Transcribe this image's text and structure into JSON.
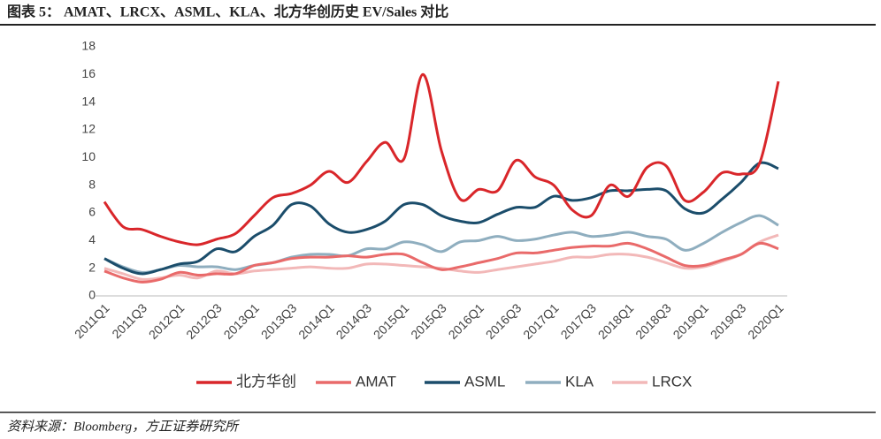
{
  "chart_data": {
    "type": "line",
    "title": "图表 5： AMAT、LRCX、ASML、KLA、北方华创历史 EV/Sales 对比",
    "source": "资料来源：Bloomberg，方正证券研究所",
    "categories": [
      "2011Q1",
      null,
      "2011Q3",
      null,
      "2012Q1",
      null,
      "2012Q3",
      null,
      "2013Q1",
      null,
      "2013Q3",
      null,
      "2014Q1",
      null,
      "2014Q3",
      null,
      "2015Q1",
      null,
      "2015Q3",
      null,
      "2016Q1",
      null,
      "2016Q3",
      null,
      "2017Q1",
      null,
      "2017Q3",
      null,
      "2018Q1",
      null,
      "2018Q3",
      null,
      "2019Q1",
      null,
      "2019Q3",
      null,
      "2020Q1"
    ],
    "series": [
      {
        "name": "北方华创",
        "color": "#d9262a",
        "values": [
          6.8,
          5.0,
          4.8,
          4.3,
          3.9,
          3.7,
          4.1,
          4.5,
          5.8,
          7.1,
          7.4,
          8.0,
          9.0,
          8.2,
          9.7,
          11.1,
          9.9,
          16.0,
          10.5,
          7.0,
          7.7,
          7.6,
          9.8,
          8.6,
          8.0,
          6.2,
          5.8,
          8.0,
          7.2,
          9.3,
          9.4,
          6.9,
          7.5,
          8.9,
          8.8,
          9.6,
          15.5
        ]
      },
      {
        "name": "AMAT",
        "color": "#e96a6a",
        "values": [
          1.8,
          1.3,
          1.0,
          1.2,
          1.7,
          1.5,
          1.6,
          1.6,
          2.2,
          2.4,
          2.7,
          2.8,
          2.8,
          2.9,
          2.8,
          3.0,
          3.0,
          2.4,
          1.9,
          2.1,
          2.4,
          2.7,
          3.1,
          3.1,
          3.3,
          3.5,
          3.6,
          3.6,
          3.8,
          3.4,
          2.8,
          2.2,
          2.2,
          2.6,
          3.0,
          3.8,
          3.4
        ]
      },
      {
        "name": "ASML",
        "color": "#1b4d6b",
        "values": [
          2.7,
          2.0,
          1.6,
          1.9,
          2.3,
          2.5,
          3.4,
          3.2,
          4.3,
          5.1,
          6.6,
          6.5,
          5.2,
          4.6,
          4.8,
          5.4,
          6.6,
          6.6,
          5.8,
          5.4,
          5.3,
          5.9,
          6.4,
          6.4,
          7.2,
          6.9,
          7.1,
          7.6,
          7.6,
          7.7,
          7.6,
          6.3,
          6.0,
          7.0,
          8.2,
          9.6,
          9.2
        ]
      },
      {
        "name": "KLA",
        "color": "#8faebf",
        "values": [
          2.7,
          2.1,
          1.7,
          1.9,
          2.2,
          2.1,
          2.1,
          1.9,
          2.2,
          2.4,
          2.8,
          3.0,
          3.0,
          2.9,
          3.4,
          3.4,
          3.9,
          3.7,
          3.2,
          3.9,
          4.0,
          4.3,
          4.0,
          4.1,
          4.4,
          4.6,
          4.3,
          4.4,
          4.6,
          4.3,
          4.1,
          3.3,
          3.8,
          4.6,
          5.3,
          5.8,
          5.1
        ]
      },
      {
        "name": "LRCX",
        "color": "#f2b8b8",
        "values": [
          2.0,
          1.6,
          1.2,
          1.3,
          1.5,
          1.3,
          1.8,
          1.6,
          1.8,
          1.9,
          2.0,
          2.1,
          2.0,
          2.0,
          2.3,
          2.3,
          2.2,
          2.1,
          2.0,
          1.8,
          1.7,
          1.9,
          2.1,
          2.3,
          2.5,
          2.8,
          2.8,
          3.0,
          3.0,
          2.8,
          2.4,
          2.0,
          2.1,
          2.5,
          3.0,
          3.9,
          4.4
        ]
      }
    ],
    "ylim": [
      0,
      18
    ],
    "yticks": [
      0,
      2,
      4,
      6,
      8,
      10,
      12,
      14,
      16,
      18
    ],
    "grid": false,
    "legend": "bottom"
  }
}
